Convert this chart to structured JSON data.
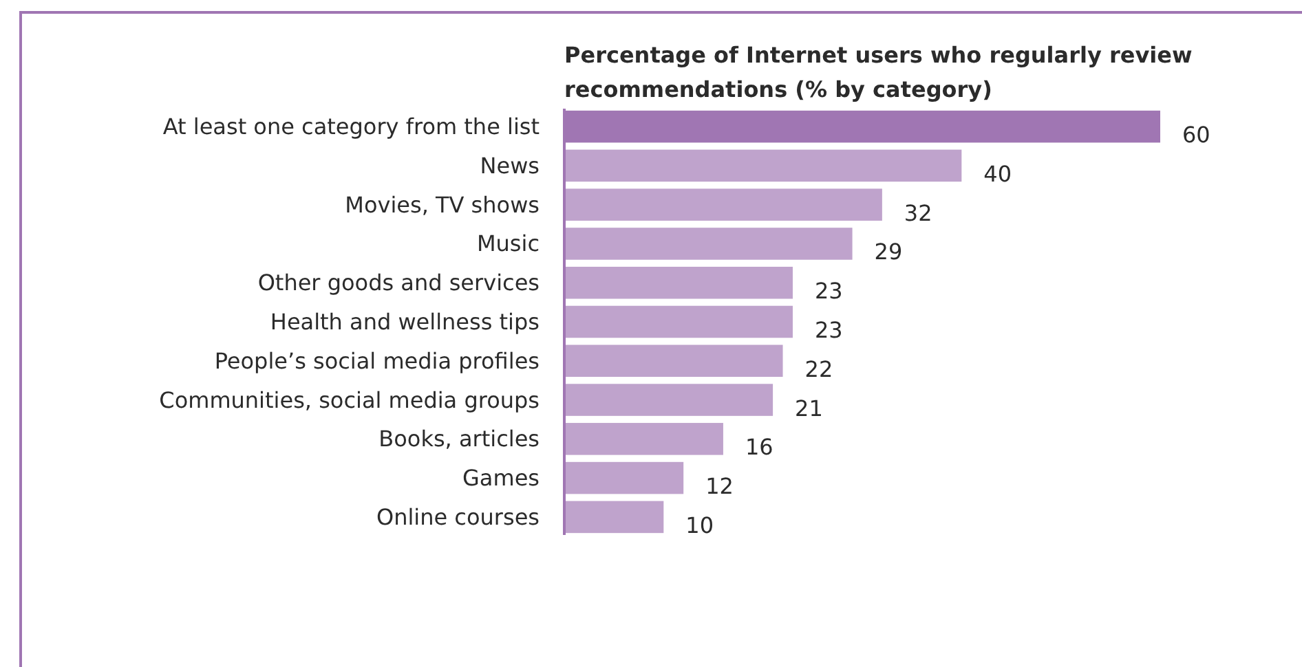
{
  "chart_data": {
    "type": "bar",
    "orientation": "horizontal",
    "title": "Percentage of Internet users who regularly review recommendations (% by category)",
    "categories": [
      "At least one category from the list",
      "News",
      "Movies, TV shows",
      "Music",
      "Other goods and services",
      "Health and wellness tips",
      "People’s social media profiles",
      "Communities, social media groups",
      "Books, articles",
      "Games",
      "Online courses"
    ],
    "values": [
      60,
      40,
      32,
      29,
      23,
      23,
      22,
      21,
      16,
      12,
      10
    ],
    "colors": [
      "#a076b3",
      "#bfa3cc",
      "#bfa3cc",
      "#bfa3cc",
      "#bfa3cc",
      "#bfa3cc",
      "#bfa3cc",
      "#bfa3cc",
      "#bfa3cc",
      "#bfa3cc",
      "#bfa3cc"
    ],
    "data_labels": true
  }
}
